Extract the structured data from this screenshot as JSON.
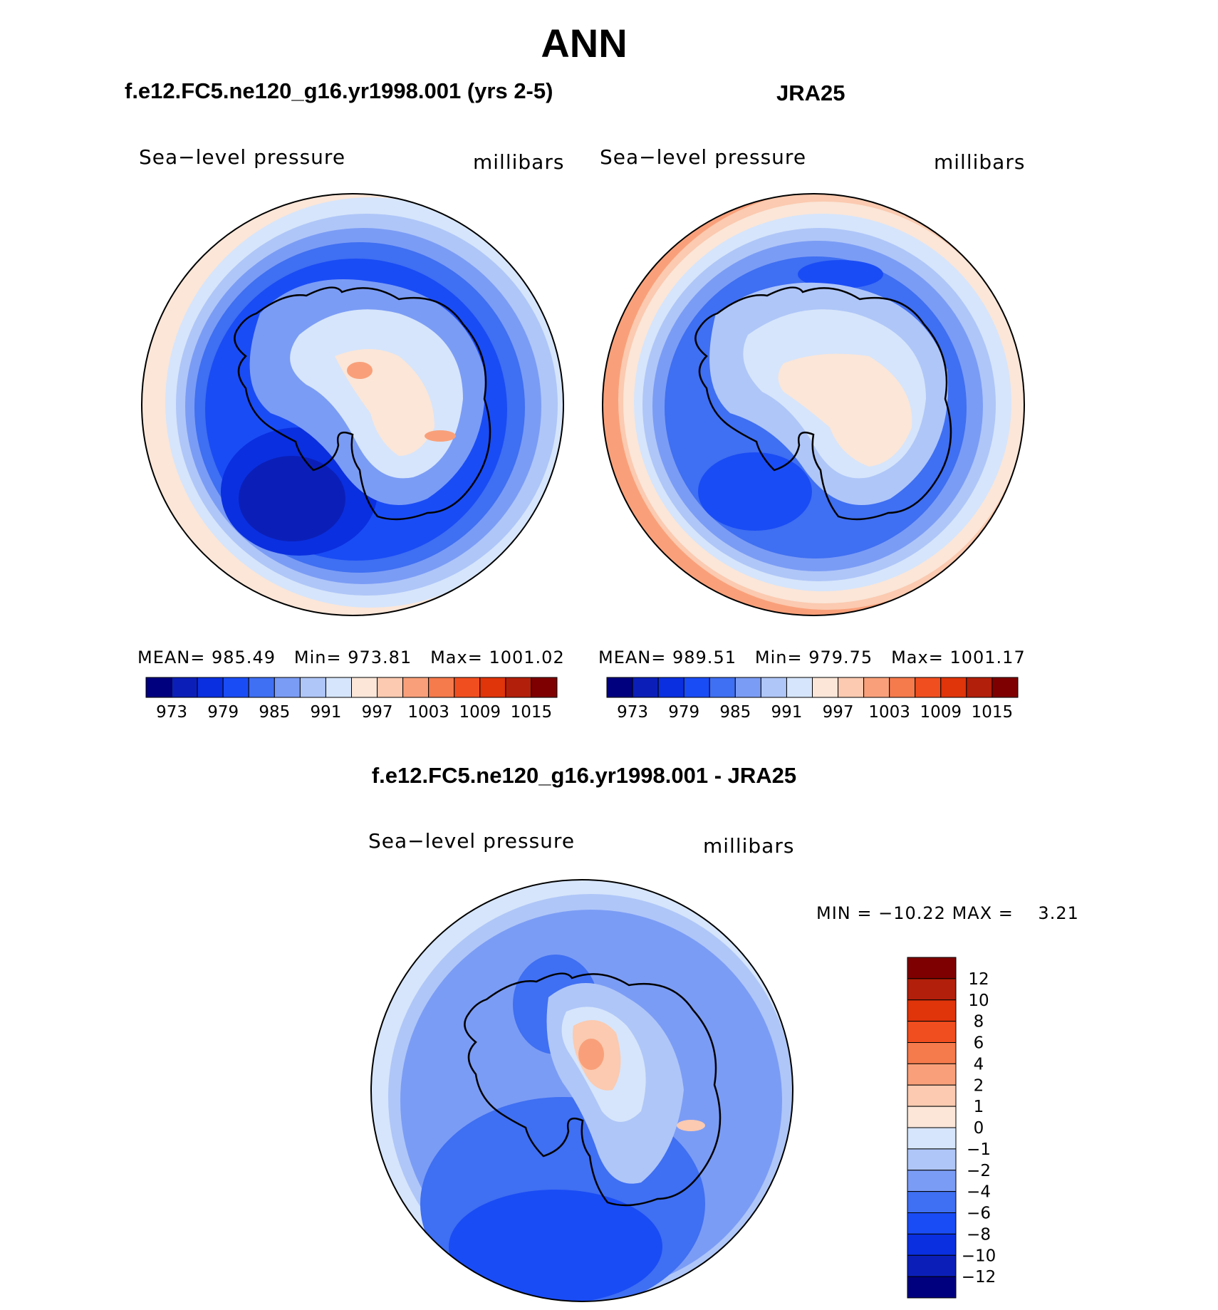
{
  "figure": {
    "title": "ANN",
    "case_title": "f.e12.FC5.ne120_g16.yr1998.001 (yrs 2-5)",
    "ref_title": "JRA25",
    "diff_title": "f.e12.FC5.ne120_g16.yr1998.001 - JRA25"
  },
  "colors": {
    "abs_scale": [
      "#00007f",
      "#0b1fb8",
      "#0a2fe0",
      "#1a4cf5",
      "#3f6ff2",
      "#7b9cf5",
      "#afc6f8",
      "#d6e5fb",
      "#fbe6d8",
      "#fbcab0",
      "#f9a07a",
      "#f57a4c",
      "#f14e1f",
      "#e0340a",
      "#b21f0a",
      "#7f0000"
    ],
    "diff_scale": [
      "#00007f",
      "#0b1fb8",
      "#0a2fe0",
      "#1a4cf5",
      "#3f6ff2",
      "#7b9cf5",
      "#afc6f8",
      "#d6e5fb",
      "#fbe6d8",
      "#fbcab0",
      "#f9a07a",
      "#f57a4c",
      "#f14e1f",
      "#e0340a",
      "#b21f0a",
      "#7f0000"
    ]
  },
  "chart_data": [
    {
      "type": "heatmap",
      "projection": "south-polar stereographic",
      "title": "f.e12.FC5.ne120_g16.yr1998.001 (yrs 2-5)",
      "variable_label": "Sea−level pressure",
      "units_label": "millibars",
      "stats": {
        "mean_label": "MEAN=",
        "mean": "985.49",
        "min_label": "Min=",
        "min": "973.81",
        "max_label": "Max=",
        "max": "1001.02"
      },
      "colorbar_ticks": [
        "973",
        "979",
        "985",
        "991",
        "997",
        "1003",
        "1009",
        "1015"
      ]
    },
    {
      "type": "heatmap",
      "projection": "south-polar stereographic",
      "title": "JRA25",
      "variable_label": "Sea−level pressure",
      "units_label": "millibars",
      "stats": {
        "mean_label": "MEAN=",
        "mean": "989.51",
        "min_label": "Min=",
        "min": "979.75",
        "max_label": "Max=",
        "max": "1001.17"
      },
      "colorbar_ticks": [
        "973",
        "979",
        "985",
        "991",
        "997",
        "1003",
        "1009",
        "1015"
      ]
    },
    {
      "type": "heatmap",
      "projection": "south-polar stereographic",
      "title": "f.e12.FC5.ne120_g16.yr1998.001 - JRA25",
      "variable_label": "Sea−level pressure",
      "units_label": "millibars",
      "stats": {
        "min_label": "MIN =",
        "min": "−10.22",
        "max_label": "MAX =",
        "max": "3.21"
      },
      "colorbar_ticks": [
        "12",
        "10",
        "8",
        "6",
        "4",
        "2",
        "1",
        "0",
        "−1",
        "−2",
        "−4",
        "−6",
        "−8",
        "−10",
        "−12"
      ]
    }
  ]
}
